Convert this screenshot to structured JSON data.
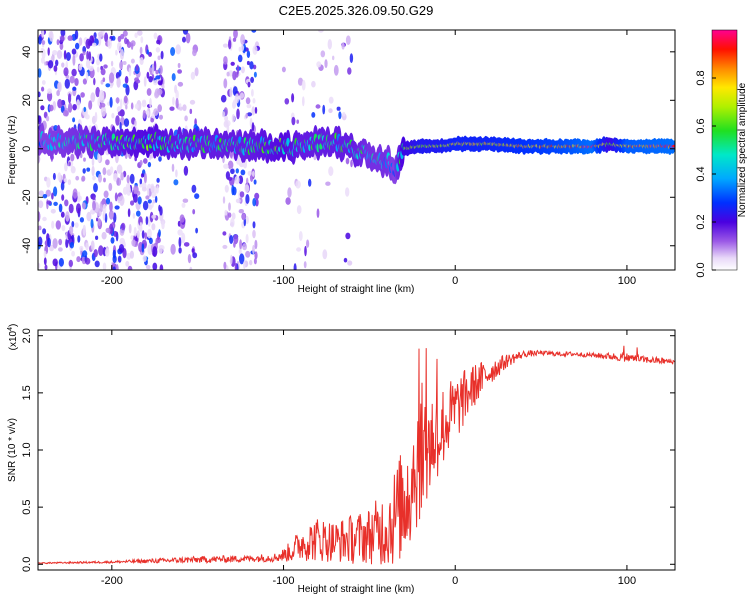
{
  "title": "C2E5.2025.326.09.50.G29",
  "chart_data": [
    {
      "type": "heatmap",
      "name": "spectrogram",
      "xlabel": "Height of straight line (km)",
      "ylabel": "Frequency (Hz)",
      "xlim": [
        -243,
        128
      ],
      "ylim": [
        -50,
        49
      ],
      "xticks": [
        -200,
        -100,
        0,
        100
      ],
      "xtick_labels": [
        "-200",
        "-100",
        "0",
        "100"
      ],
      "yticks": [
        -40,
        -20,
        0,
        20,
        40
      ],
      "ytick_labels": [
        "-40",
        "-20",
        "0",
        "20",
        "40"
      ],
      "colorbar": {
        "label": "Normalized spectral amplitude",
        "range": [
          0,
          1
        ],
        "ticks": [
          0.0,
          0.2,
          0.4,
          0.6,
          0.8
        ],
        "tick_labels": [
          "0.0",
          "0.2",
          "0.4",
          "0.6",
          "0.8"
        ]
      },
      "ridge": {
        "x": [
          -243,
          -220,
          -200,
          -180,
          -160,
          -140,
          -120,
          -100,
          -90,
          -80,
          -70,
          -60,
          -50,
          -40,
          -35,
          -30,
          -20,
          -10,
          0,
          20,
          40,
          60,
          80,
          90,
          100,
          128
        ],
        "freq": [
          3,
          3,
          3,
          3,
          2,
          2,
          1,
          1,
          0,
          3,
          3,
          0,
          -2,
          -5,
          -8,
          0,
          1,
          1,
          2,
          2,
          1,
          1,
          1,
          2,
          1,
          1
        ],
        "amp": [
          0.4,
          0.45,
          0.5,
          0.55,
          0.5,
          0.5,
          0.5,
          0.55,
          0.5,
          0.5,
          0.5,
          0.5,
          0.45,
          0.45,
          0.4,
          0.6,
          0.7,
          0.7,
          0.75,
          0.75,
          0.8,
          0.85,
          0.95,
          0.6,
          0.9,
          0.95
        ]
      },
      "noise_regions": [
        {
          "x": [
            -243,
            -170
          ],
          "density": "high"
        },
        {
          "x": [
            -165,
            -150
          ],
          "density": "medium"
        },
        {
          "x": [
            -135,
            -115
          ],
          "density": "high"
        },
        {
          "x": [
            -100,
            -60
          ],
          "density": "low"
        }
      ]
    },
    {
      "type": "line",
      "name": "snr",
      "xlabel": "Height of straight line (km)",
      "ylabel": "SNR (10 * v/v)",
      "multiplier": "(x10",
      "multiplier_exp": "4",
      "multiplier_close": ")",
      "xlim": [
        -243,
        128
      ],
      "ylim": [
        -0.05,
        2.05
      ],
      "xticks": [
        -200,
        -100,
        0,
        100
      ],
      "xtick_labels": [
        "-200",
        "-100",
        "0",
        "100"
      ],
      "yticks": [
        0,
        0.5,
        1.0,
        1.5,
        2.0
      ],
      "ytick_labels": [
        "0.0",
        "0.5",
        "1.0",
        "1.5",
        "2.0"
      ],
      "color": "#e8302a",
      "envelope": {
        "x": [
          -243,
          -200,
          -150,
          -120,
          -105,
          -100,
          -95,
          -90,
          -80,
          -70,
          -60,
          -50,
          -40,
          -35,
          -30,
          -25,
          -20,
          -15,
          -10,
          -5,
          0,
          5,
          10,
          20,
          30,
          40,
          50,
          60,
          70,
          80,
          90,
          100,
          110,
          120,
          128
        ],
        "mean": [
          0.01,
          0.02,
          0.04,
          0.05,
          0.06,
          0.08,
          0.12,
          0.18,
          0.22,
          0.2,
          0.22,
          0.25,
          0.32,
          0.42,
          0.55,
          0.75,
          1.0,
          1.05,
          1.15,
          1.25,
          1.35,
          1.45,
          1.55,
          1.68,
          1.78,
          1.84,
          1.85,
          1.84,
          1.84,
          1.83,
          1.82,
          1.81,
          1.79,
          1.78,
          1.77
        ],
        "spread": [
          0.005,
          0.01,
          0.03,
          0.03,
          0.04,
          0.06,
          0.1,
          0.15,
          0.2,
          0.18,
          0.22,
          0.25,
          0.35,
          0.45,
          0.5,
          0.55,
          0.6,
          0.5,
          0.4,
          0.35,
          0.3,
          0.25,
          0.2,
          0.12,
          0.06,
          0.03,
          0.02,
          0.02,
          0.02,
          0.02,
          0.03,
          0.04,
          0.03,
          0.03,
          0.02
        ]
      }
    }
  ]
}
